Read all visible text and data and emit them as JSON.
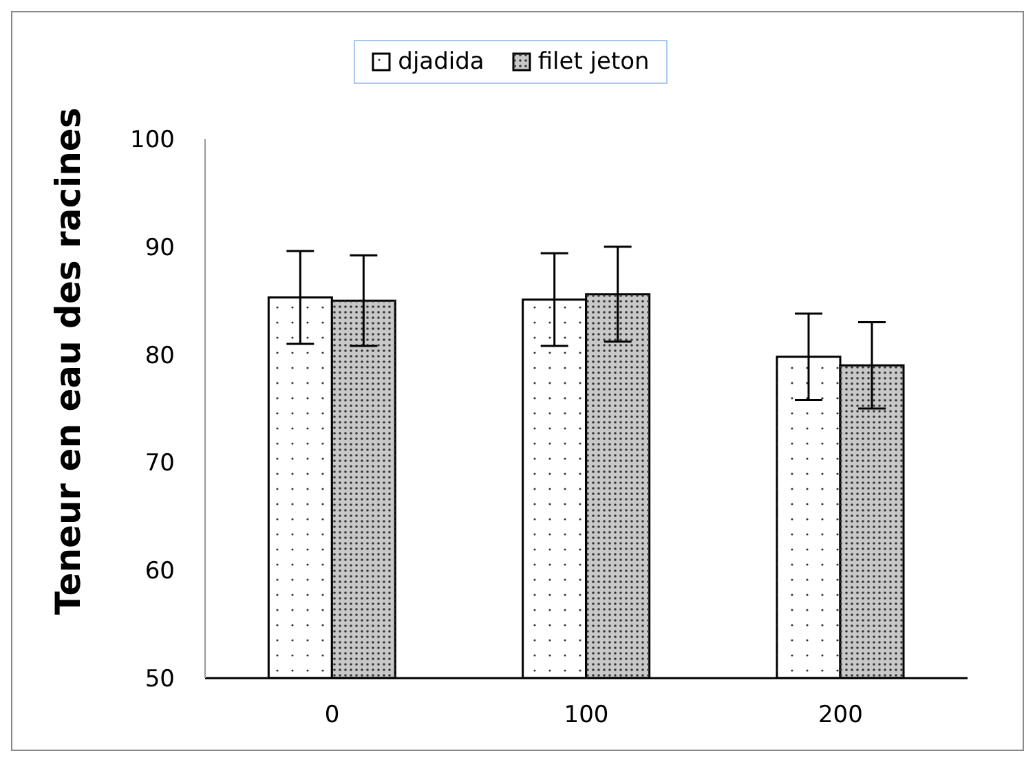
{
  "chart_data": {
    "type": "bar",
    "ylabel": "Teneur en eau des racines",
    "categories": [
      "0",
      "100",
      "200"
    ],
    "series": [
      {
        "name": "djadida",
        "color": "#ffffff",
        "values": [
          85.3,
          85.1,
          79.8
        ],
        "errors": [
          4.3,
          4.3,
          4.0
        ]
      },
      {
        "name": "filet jeton",
        "color": "#c8c8c8",
        "values": [
          85.0,
          85.6,
          79.0
        ],
        "errors": [
          4.2,
          4.4,
          4.0
        ]
      }
    ],
    "ylim": [
      50,
      100
    ],
    "yticks": [
      50,
      60,
      70,
      80,
      90,
      100
    ],
    "grid": false,
    "legend": "top"
  }
}
